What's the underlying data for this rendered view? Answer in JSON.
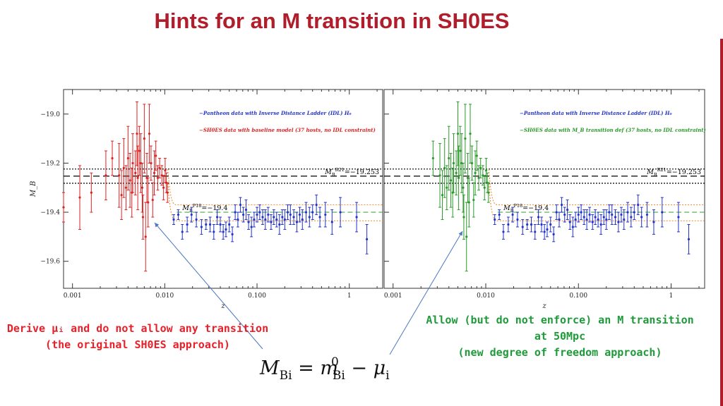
{
  "slide": {
    "title": "Hints for an M transition in SH0ES",
    "annotation_left": "Derive μᵢ and do not allow any transition\n(the original SH0ES approach)",
    "annotation_right": "Allow (but do not enforce) an M transition\nat 50Mpc\n(new degree of freedom approach)",
    "formula": {
      "lhs": "M",
      "lhs_sub": "Bi",
      "equals": " = ",
      "rhs1": "m",
      "rhs1_sup": "0",
      "rhs1_sub": "Bi",
      "minus": " − ",
      "rhs2": "μ",
      "rhs2_sub": "i"
    },
    "colors": {
      "title": "#b01d2b",
      "accent": "#b01d2b",
      "annotation_left": "#e8202a",
      "annotation_right": "#1f9a3a",
      "arrow": "#4a78c4"
    }
  },
  "chart_data": [
    {
      "type": "scatter",
      "panel": "left",
      "xscale": "log",
      "xlim": [
        0.0008,
        2.3
      ],
      "ylim": [
        -19.71,
        -18.9
      ],
      "xlabel": "z",
      "ylabel": "M_B",
      "x_ticks": [
        0.001,
        0.01,
        0.1,
        1
      ],
      "x_tick_labels": [
        "0.001",
        "0.010",
        "0.100",
        "1"
      ],
      "y_ticks": [
        -19.0,
        -19.2,
        -19.4,
        -19.6
      ],
      "y_tick_labels": [
        "−19.0",
        "−19.2",
        "−19.4",
        "−19.6"
      ],
      "legend_position": "top-right",
      "legend": [
        {
          "text": "−Pantheon data with Inverse Distance Ladder (IDL) H₀",
          "color": "#2233cc"
        },
        {
          "text": "−SH0ES data with baseline model (37 hosts, no IDL constraint)",
          "color": "#dd2222"
        }
      ],
      "reference_lines": [
        {
          "label": "M_B^R21 = −19.253",
          "label_main": "M",
          "label_sub": "B",
          "label_sup": "R21",
          "label_value": "=−19.253",
          "y": -19.253,
          "band": [
            -19.224,
            -19.282
          ],
          "color": "#000000"
        },
        {
          "label": "M_B^P18 = −19.4",
          "label_main": "M",
          "label_sub": "B",
          "label_sup": "P18",
          "label_value": "=−19.4",
          "y": -19.4,
          "band": [
            -19.37,
            -19.435
          ],
          "color": "#4aa84a"
        }
      ],
      "series": [
        {
          "name": "SH0ES",
          "color": "#dd2222",
          "points": [
            [
              0.0008,
              -19.38,
              0.06
            ],
            [
              0.0012,
              -19.34,
              0.13
            ],
            [
              0.0016,
              -19.32,
              0.08
            ],
            [
              0.0023,
              -19.25,
              0.1
            ],
            [
              0.0027,
              -19.18,
              0.07
            ],
            [
              0.0032,
              -19.25,
              0.13
            ],
            [
              0.0034,
              -19.33,
              0.1
            ],
            [
              0.0036,
              -19.22,
              0.12
            ],
            [
              0.0038,
              -19.3,
              0.09
            ],
            [
              0.004,
              -19.18,
              0.13
            ],
            [
              0.0042,
              -19.27,
              0.11
            ],
            [
              0.0044,
              -19.32,
              0.1
            ],
            [
              0.0045,
              -19.2,
              0.12
            ],
            [
              0.0048,
              -19.24,
              0.09
            ],
            [
              0.005,
              -19.08,
              0.13
            ],
            [
              0.0051,
              -19.26,
              0.13
            ],
            [
              0.0053,
              -19.15,
              0.1
            ],
            [
              0.0055,
              -19.2,
              0.12
            ],
            [
              0.0057,
              -19.3,
              0.1
            ],
            [
              0.0058,
              -19.42,
              0.09
            ],
            [
              0.006,
              -19.1,
              0.14
            ],
            [
              0.0062,
              -19.5,
              0.14
            ],
            [
              0.0064,
              -19.26,
              0.1
            ],
            [
              0.0066,
              -19.36,
              0.1
            ],
            [
              0.0068,
              -19.08,
              0.12
            ],
            [
              0.0071,
              -19.2,
              0.07
            ],
            [
              0.0074,
              -19.35,
              0.07
            ],
            [
              0.0077,
              -19.24,
              0.09
            ],
            [
              0.008,
              -19.17,
              0.06
            ],
            [
              0.0084,
              -19.26,
              0.05
            ],
            [
              0.0088,
              -19.22,
              0.04
            ],
            [
              0.0093,
              -19.25,
              0.04
            ],
            [
              0.0097,
              -19.3,
              0.05
            ],
            [
              0.0101,
              -19.23,
              0.05
            ],
            [
              0.0104,
              -19.28,
              0.04
            ],
            [
              0.0107,
              -19.32,
              0.04
            ]
          ]
        },
        {
          "name": "Pantheon",
          "color": "#2233cc",
          "points": [
            [
              0.0125,
              -19.43,
              0.02
            ],
            [
              0.014,
              -19.41,
              0.02
            ],
            [
              0.0155,
              -19.48,
              0.03
            ],
            [
              0.0175,
              -19.45,
              0.03
            ],
            [
              0.0195,
              -19.41,
              0.03
            ],
            [
              0.022,
              -19.43,
              0.03
            ],
            [
              0.025,
              -19.46,
              0.03
            ],
            [
              0.028,
              -19.45,
              0.02
            ],
            [
              0.031,
              -19.45,
              0.03
            ],
            [
              0.034,
              -19.48,
              0.03
            ],
            [
              0.037,
              -19.42,
              0.03
            ],
            [
              0.04,
              -19.45,
              0.03
            ],
            [
              0.043,
              -19.48,
              0.03
            ],
            [
              0.046,
              -19.47,
              0.03
            ],
            [
              0.05,
              -19.45,
              0.03
            ],
            [
              0.054,
              -19.49,
              0.03
            ],
            [
              0.058,
              -19.4,
              0.03
            ],
            [
              0.062,
              -19.43,
              0.03
            ],
            [
              0.066,
              -19.37,
              0.03
            ],
            [
              0.071,
              -19.41,
              0.03
            ],
            [
              0.076,
              -19.39,
              0.04
            ],
            [
              0.081,
              -19.44,
              0.03
            ],
            [
              0.087,
              -19.46,
              0.04
            ],
            [
              0.093,
              -19.43,
              0.03
            ],
            [
              0.1,
              -19.41,
              0.03
            ],
            [
              0.107,
              -19.4,
              0.03
            ],
            [
              0.115,
              -19.42,
              0.03
            ],
            [
              0.123,
              -19.43,
              0.04
            ],
            [
              0.132,
              -19.41,
              0.03
            ],
            [
              0.142,
              -19.44,
              0.03
            ],
            [
              0.152,
              -19.42,
              0.03
            ],
            [
              0.163,
              -19.43,
              0.03
            ],
            [
              0.175,
              -19.45,
              0.04
            ],
            [
              0.188,
              -19.42,
              0.03
            ],
            [
              0.2,
              -19.43,
              0.04
            ],
            [
              0.215,
              -19.4,
              0.03
            ],
            [
              0.23,
              -19.41,
              0.04
            ],
            [
              0.25,
              -19.42,
              0.03
            ],
            [
              0.27,
              -19.44,
              0.04
            ],
            [
              0.29,
              -19.41,
              0.03
            ],
            [
              0.31,
              -19.43,
              0.04
            ],
            [
              0.34,
              -19.4,
              0.04
            ],
            [
              0.37,
              -19.42,
              0.04
            ],
            [
              0.4,
              -19.4,
              0.03
            ],
            [
              0.44,
              -19.37,
              0.04
            ],
            [
              0.48,
              -19.42,
              0.04
            ],
            [
              0.55,
              -19.41,
              0.05
            ],
            [
              0.65,
              -19.44,
              0.05
            ],
            [
              0.8,
              -19.4,
              0.06
            ],
            [
              1.2,
              -19.42,
              0.06
            ],
            [
              1.55,
              -19.51,
              0.06
            ]
          ]
        }
      ]
    },
    {
      "type": "scatter",
      "panel": "right",
      "xscale": "log",
      "xlim": [
        0.0008,
        2.3
      ],
      "ylim": [
        -19.71,
        -18.9
      ],
      "xlabel": "z",
      "ylabel": "",
      "x_ticks": [
        0.001,
        0.01,
        0.1,
        1
      ],
      "x_tick_labels": [
        "0.001",
        "0.010",
        "0.100",
        "1"
      ],
      "legend_position": "top-right",
      "legend": [
        {
          "text": "−Pantheon data with Inverse Distance Ladder (IDL) H₀",
          "color": "#2233cc"
        },
        {
          "text": "−SH0ES data with M_B transition def (37 hosts, no IDL constraint)",
          "color": "#2a9a2a"
        }
      ],
      "reference_lines": [
        {
          "label": "M_B^R21 = −19.253",
          "label_main": "M",
          "label_sub": "B",
          "label_sup": "R21",
          "label_value": "=−19.253",
          "y": -19.253,
          "band": [
            -19.224,
            -19.282
          ],
          "color": "#000000"
        },
        {
          "label": "M_B^P18 = −19.4",
          "label_main": "M",
          "label_sub": "B",
          "label_sup": "P18",
          "label_value": "=−19.4",
          "y": -19.4,
          "band": [
            -19.37,
            -19.435
          ],
          "color": "#4aa84a"
        }
      ],
      "series": [
        {
          "name": "SH0ES",
          "color": "#2a9a2a",
          "points": [
            [
              0.0027,
              -19.18,
              0.07
            ],
            [
              0.0032,
              -19.25,
              0.13
            ],
            [
              0.0034,
              -19.33,
              0.1
            ],
            [
              0.0036,
              -19.22,
              0.12
            ],
            [
              0.0038,
              -19.3,
              0.09
            ],
            [
              0.004,
              -19.18,
              0.13
            ],
            [
              0.0042,
              -19.27,
              0.11
            ],
            [
              0.0044,
              -19.32,
              0.1
            ],
            [
              0.0045,
              -19.2,
              0.12
            ],
            [
              0.0048,
              -19.24,
              0.09
            ],
            [
              0.005,
              -19.08,
              0.13
            ],
            [
              0.0051,
              -19.26,
              0.13
            ],
            [
              0.0053,
              -19.15,
              0.1
            ],
            [
              0.0055,
              -19.2,
              0.12
            ],
            [
              0.0057,
              -19.3,
              0.1
            ],
            [
              0.0058,
              -19.42,
              0.09
            ],
            [
              0.006,
              -19.1,
              0.14
            ],
            [
              0.0062,
              -19.5,
              0.14
            ],
            [
              0.0064,
              -19.26,
              0.1
            ],
            [
              0.0066,
              -19.36,
              0.1
            ],
            [
              0.0068,
              -19.08,
              0.12
            ],
            [
              0.0071,
              -19.2,
              0.07
            ],
            [
              0.0074,
              -19.35,
              0.07
            ],
            [
              0.0077,
              -19.24,
              0.09
            ],
            [
              0.008,
              -19.17,
              0.06
            ],
            [
              0.0084,
              -19.26,
              0.05
            ],
            [
              0.0088,
              -19.22,
              0.04
            ],
            [
              0.0093,
              -19.25,
              0.04
            ],
            [
              0.0097,
              -19.3,
              0.05
            ],
            [
              0.0101,
              -19.23,
              0.05
            ],
            [
              0.0104,
              -19.28,
              0.04
            ],
            [
              0.0107,
              -19.32,
              0.04
            ]
          ]
        },
        {
          "name": "Pantheon",
          "color": "#2233cc",
          "points": [
            [
              0.0125,
              -19.43,
              0.02
            ],
            [
              0.014,
              -19.41,
              0.02
            ],
            [
              0.0155,
              -19.48,
              0.03
            ],
            [
              0.0175,
              -19.45,
              0.03
            ],
            [
              0.0195,
              -19.41,
              0.03
            ],
            [
              0.022,
              -19.43,
              0.03
            ],
            [
              0.025,
              -19.46,
              0.03
            ],
            [
              0.028,
              -19.45,
              0.02
            ],
            [
              0.031,
              -19.45,
              0.03
            ],
            [
              0.034,
              -19.48,
              0.03
            ],
            [
              0.037,
              -19.42,
              0.03
            ],
            [
              0.04,
              -19.45,
              0.03
            ],
            [
              0.043,
              -19.48,
              0.03
            ],
            [
              0.046,
              -19.47,
              0.03
            ],
            [
              0.05,
              -19.45,
              0.03
            ],
            [
              0.054,
              -19.49,
              0.03
            ],
            [
              0.058,
              -19.4,
              0.03
            ],
            [
              0.062,
              -19.43,
              0.03
            ],
            [
              0.066,
              -19.37,
              0.03
            ],
            [
              0.071,
              -19.41,
              0.03
            ],
            [
              0.076,
              -19.39,
              0.04
            ],
            [
              0.081,
              -19.44,
              0.03
            ],
            [
              0.087,
              -19.46,
              0.04
            ],
            [
              0.093,
              -19.43,
              0.03
            ],
            [
              0.1,
              -19.41,
              0.03
            ],
            [
              0.107,
              -19.4,
              0.03
            ],
            [
              0.115,
              -19.42,
              0.03
            ],
            [
              0.123,
              -19.43,
              0.04
            ],
            [
              0.132,
              -19.41,
              0.03
            ],
            [
              0.142,
              -19.44,
              0.03
            ],
            [
              0.152,
              -19.42,
              0.03
            ],
            [
              0.163,
              -19.43,
              0.03
            ],
            [
              0.175,
              -19.45,
              0.04
            ],
            [
              0.188,
              -19.42,
              0.03
            ],
            [
              0.2,
              -19.43,
              0.04
            ],
            [
              0.215,
              -19.4,
              0.03
            ],
            [
              0.23,
              -19.41,
              0.04
            ],
            [
              0.25,
              -19.42,
              0.03
            ],
            [
              0.27,
              -19.44,
              0.04
            ],
            [
              0.29,
              -19.41,
              0.03
            ],
            [
              0.31,
              -19.43,
              0.04
            ],
            [
              0.34,
              -19.4,
              0.04
            ],
            [
              0.37,
              -19.42,
              0.04
            ],
            [
              0.4,
              -19.4,
              0.03
            ],
            [
              0.44,
              -19.37,
              0.04
            ],
            [
              0.48,
              -19.42,
              0.04
            ],
            [
              0.55,
              -19.41,
              0.05
            ],
            [
              0.65,
              -19.44,
              0.05
            ],
            [
              0.8,
              -19.4,
              0.06
            ],
            [
              1.2,
              -19.42,
              0.06
            ],
            [
              1.55,
              -19.51,
              0.06
            ]
          ]
        }
      ]
    }
  ]
}
